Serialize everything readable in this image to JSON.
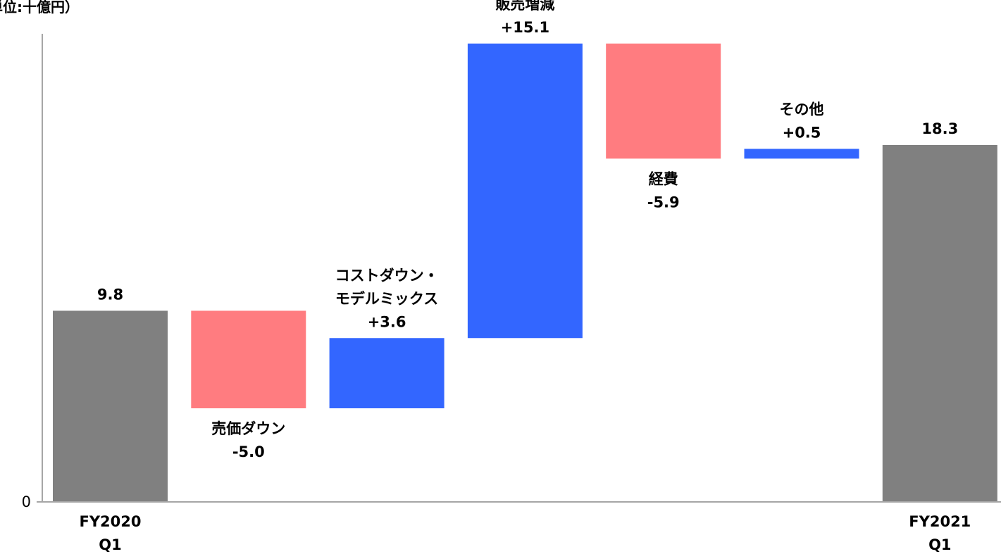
{
  "chart_data": {
    "type": "bar",
    "subtype": "waterfall",
    "unit_label": "単位:十億円）",
    "y_tick_labels": [
      "0"
    ],
    "ylim": [
      0,
      24
    ],
    "grid": false,
    "legend": "none",
    "colors": {
      "total": "#808080",
      "increase": "#3366ff",
      "decrease": "#ff7c80",
      "axis": "#a6a6a6"
    },
    "steps": [
      {
        "kind": "total",
        "value": 9.8,
        "value_label": "9.8",
        "label_lines": [],
        "axis_lines": [
          "FY2020",
          "Q1"
        ]
      },
      {
        "kind": "decrease",
        "value": -5.0,
        "value_label": "-5.0",
        "label_lines": [
          "売価ダウン"
        ],
        "axis_lines": []
      },
      {
        "kind": "increase",
        "value": 3.6,
        "value_label": "+3.6",
        "label_lines": [
          "コストダウン・",
          "モデルミックス"
        ],
        "axis_lines": []
      },
      {
        "kind": "increase",
        "value": 15.1,
        "value_label": "+15.1",
        "label_lines": [
          "販売増減"
        ],
        "axis_lines": []
      },
      {
        "kind": "decrease",
        "value": -5.9,
        "value_label": "-5.9",
        "label_lines": [
          "経費"
        ],
        "axis_lines": []
      },
      {
        "kind": "increase",
        "value": 0.5,
        "value_label": "+0.5",
        "label_lines": [
          "その他"
        ],
        "axis_lines": []
      },
      {
        "kind": "total",
        "value": 18.3,
        "value_label": "18.3",
        "label_lines": [],
        "axis_lines": [
          "FY2021",
          "Q1"
        ]
      }
    ]
  }
}
